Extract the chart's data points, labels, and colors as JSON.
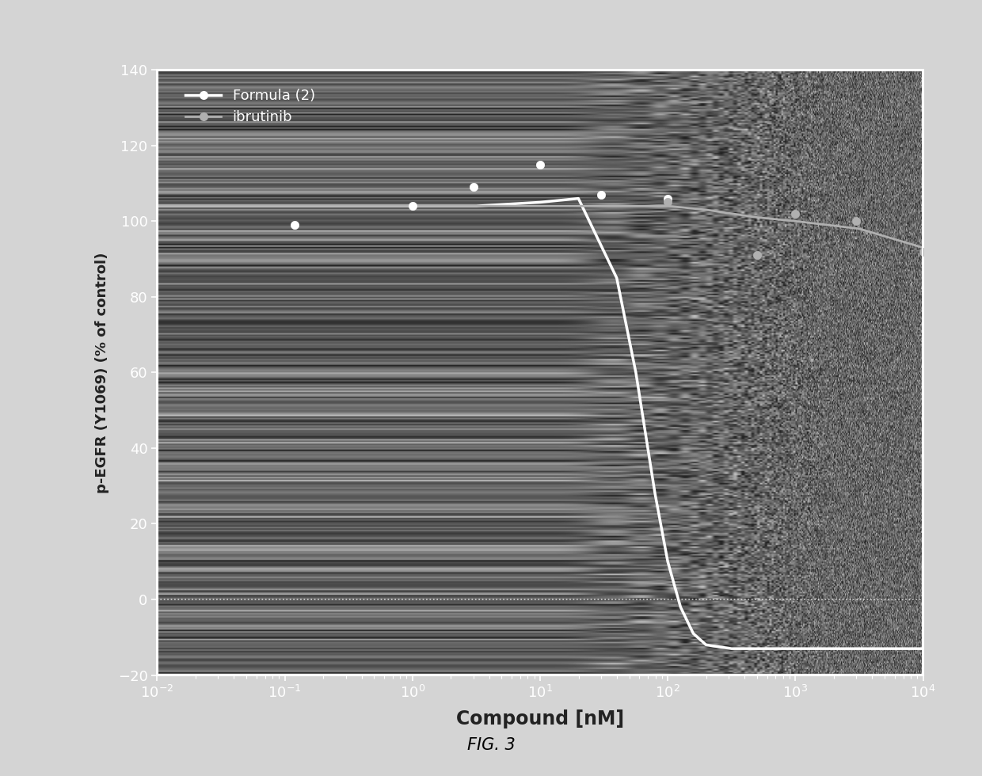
{
  "title": "FIG. 3",
  "xlabel": "Compound [nM]",
  "ylabel": "p-EGFR (Y1069) (% of control)",
  "ylim": [
    -20,
    140
  ],
  "yticks": [
    -20,
    0,
    20,
    40,
    60,
    80,
    100,
    120,
    140
  ],
  "outer_bg": "#d4d4d4",
  "inner_border_color": "#ffffff",
  "plot_bg": "#5a5a5a",
  "formula2_color": "#ffffff",
  "ibrutinib_color": "#b0b0b0",
  "formula2_scatter_x": [
    0.12,
    1.0,
    3.0,
    10.0,
    30.0,
    100.0
  ],
  "formula2_scatter_y": [
    99,
    104,
    109,
    115,
    107,
    106
  ],
  "ibrutinib_scatter_x": [
    100.0,
    500.0,
    1000.0,
    3000.0,
    10000.0
  ],
  "ibrutinib_scatter_y": [
    105,
    91,
    102,
    100,
    92
  ],
  "formula2_curve_x_log": [
    -2,
    -1.5,
    -1,
    -0.5,
    0,
    0.5,
    1.0,
    1.3,
    1.6,
    1.75,
    1.9,
    2.0,
    2.1,
    2.2,
    2.3,
    2.5,
    2.7,
    3.0,
    3.5,
    4.0
  ],
  "formula2_curve_y": [
    104,
    104,
    104,
    104,
    104,
    104,
    105,
    106,
    85,
    60,
    28,
    10,
    -2,
    -9,
    -12,
    -13,
    -13,
    -13,
    -13,
    -13
  ],
  "ibrutinib_curve_x_log": [
    -2,
    -1,
    0,
    1,
    1.5,
    2.0,
    2.3,
    2.7,
    3.0,
    3.5,
    4.0
  ],
  "ibrutinib_curve_y": [
    104,
    104,
    104,
    104,
    104,
    104,
    103,
    101,
    100,
    98,
    93
  ],
  "legend_formula2": "Formula (2)",
  "legend_ibrutinib": "ibrutinib",
  "fig_width": 12.4,
  "fig_height": 9.8,
  "dpi": 100
}
